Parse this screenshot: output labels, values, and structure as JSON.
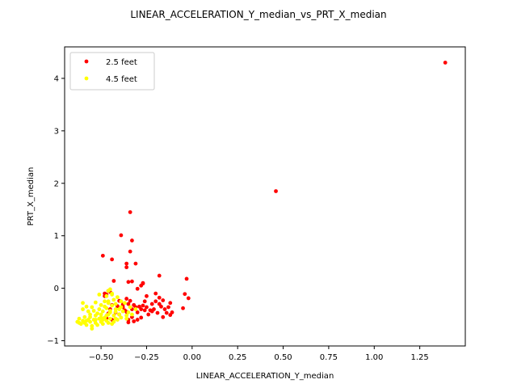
{
  "chart_data": {
    "type": "scatter",
    "title": "LINEAR_ACCELERATION_Y_median_vs_PRT_X_median",
    "xlabel": "LINEAR_ACCELERATION_Y_median",
    "ylabel": "PRT_X_median",
    "xlim": [
      -0.7,
      1.5
    ],
    "ylim": [
      -1.1,
      4.6
    ],
    "xticks": [
      -0.5,
      -0.25,
      0.0,
      0.25,
      0.5,
      0.75,
      1.0,
      1.25
    ],
    "xtick_labels": [
      "−0.50",
      "−0.25",
      "0.00",
      "0.25",
      "0.50",
      "0.75",
      "1.00",
      "1.25"
    ],
    "yticks": [
      -1,
      0,
      1,
      2,
      3,
      4
    ],
    "ytick_labels": [
      "−1",
      "0",
      "1",
      "2",
      "3",
      "4"
    ],
    "grid": false,
    "legend_position": "top-left",
    "series": [
      {
        "name": "2.5 feet",
        "color": "#ff0000",
        "points": [
          [
            1.39,
            4.3
          ],
          [
            0.46,
            1.85
          ],
          [
            -0.34,
            1.45
          ],
          [
            -0.39,
            1.01
          ],
          [
            -0.33,
            0.91
          ],
          [
            -0.49,
            0.62
          ],
          [
            -0.44,
            0.55
          ],
          [
            -0.34,
            0.7
          ],
          [
            -0.36,
            0.47
          ],
          [
            -0.31,
            0.47
          ],
          [
            -0.36,
            0.4
          ],
          [
            -0.03,
            0.18
          ],
          [
            -0.18,
            0.24
          ],
          [
            -0.33,
            0.13
          ],
          [
            -0.35,
            0.12
          ],
          [
            -0.43,
            0.14
          ],
          [
            -0.27,
            0.09
          ],
          [
            -0.28,
            0.05
          ],
          [
            -0.3,
            -0.01
          ],
          [
            -0.46,
            -0.05
          ],
          [
            -0.45,
            -0.07
          ],
          [
            -0.04,
            -0.11
          ],
          [
            -0.2,
            -0.1
          ],
          [
            -0.47,
            -0.12
          ],
          [
            -0.48,
            -0.15
          ],
          [
            -0.18,
            -0.18
          ],
          [
            -0.25,
            -0.15
          ],
          [
            -0.4,
            -0.24
          ],
          [
            -0.36,
            -0.2
          ],
          [
            -0.26,
            -0.25
          ],
          [
            -0.02,
            -0.19
          ],
          [
            -0.16,
            -0.23
          ],
          [
            -0.34,
            -0.24
          ],
          [
            -0.18,
            -0.3
          ],
          [
            -0.2,
            -0.25
          ],
          [
            -0.35,
            -0.3
          ],
          [
            -0.38,
            -0.31
          ],
          [
            -0.41,
            -0.34
          ],
          [
            -0.44,
            -0.32
          ],
          [
            -0.27,
            -0.33
          ],
          [
            -0.32,
            -0.32
          ],
          [
            -0.29,
            -0.35
          ],
          [
            -0.25,
            -0.36
          ],
          [
            -0.28,
            -0.4
          ],
          [
            -0.31,
            -0.36
          ],
          [
            -0.45,
            -0.4
          ],
          [
            -0.37,
            -0.42
          ],
          [
            -0.26,
            -0.42
          ],
          [
            -0.22,
            -0.44
          ],
          [
            -0.17,
            -0.35
          ],
          [
            -0.13,
            -0.36
          ],
          [
            -0.15,
            -0.4
          ],
          [
            -0.05,
            -0.38
          ],
          [
            -0.12,
            -0.28
          ],
          [
            -0.21,
            -0.4
          ],
          [
            -0.23,
            -0.42
          ],
          [
            -0.36,
            -0.45
          ],
          [
            -0.3,
            -0.46
          ],
          [
            -0.4,
            -0.5
          ],
          [
            -0.42,
            -0.46
          ],
          [
            -0.46,
            -0.48
          ],
          [
            -0.19,
            -0.47
          ],
          [
            -0.14,
            -0.47
          ],
          [
            -0.11,
            -0.46
          ],
          [
            -0.12,
            -0.51
          ],
          [
            -0.24,
            -0.5
          ],
          [
            -0.33,
            -0.55
          ],
          [
            -0.28,
            -0.56
          ],
          [
            -0.35,
            -0.6
          ],
          [
            -0.47,
            -0.57
          ],
          [
            -0.32,
            -0.63
          ],
          [
            -0.16,
            -0.55
          ],
          [
            -0.44,
            -0.6
          ],
          [
            -0.3,
            -0.6
          ],
          [
            -0.35,
            -0.65
          ],
          [
            -0.48,
            -0.1
          ],
          [
            -0.27,
            0.1
          ],
          [
            -0.22,
            -0.3
          ],
          [
            -0.38,
            -0.36
          ],
          [
            -0.33,
            -0.4
          ]
        ]
      },
      {
        "name": "4.5 feet",
        "color": "#ffff00",
        "points": [
          [
            -0.45,
            -0.02
          ],
          [
            -0.44,
            -0.1
          ],
          [
            -0.47,
            -0.15
          ],
          [
            -0.51,
            -0.12
          ],
          [
            -0.41,
            -0.17
          ],
          [
            -0.43,
            -0.22
          ],
          [
            -0.48,
            -0.25
          ],
          [
            -0.53,
            -0.27
          ],
          [
            -0.46,
            -0.28
          ],
          [
            -0.5,
            -0.32
          ],
          [
            -0.42,
            -0.3
          ],
          [
            -0.55,
            -0.36
          ],
          [
            -0.58,
            -0.35
          ],
          [
            -0.6,
            -0.28
          ],
          [
            -0.44,
            -0.33
          ],
          [
            -0.39,
            -0.36
          ],
          [
            -0.47,
            -0.38
          ],
          [
            -0.51,
            -0.4
          ],
          [
            -0.54,
            -0.43
          ],
          [
            -0.57,
            -0.44
          ],
          [
            -0.6,
            -0.4
          ],
          [
            -0.49,
            -0.44
          ],
          [
            -0.45,
            -0.43
          ],
          [
            -0.42,
            -0.45
          ],
          [
            -0.38,
            -0.44
          ],
          [
            -0.35,
            -0.46
          ],
          [
            -0.33,
            -0.5
          ],
          [
            -0.36,
            -0.52
          ],
          [
            -0.4,
            -0.5
          ],
          [
            -0.43,
            -0.52
          ],
          [
            -0.46,
            -0.5
          ],
          [
            -0.5,
            -0.5
          ],
          [
            -0.53,
            -0.52
          ],
          [
            -0.56,
            -0.55
          ],
          [
            -0.59,
            -0.55
          ],
          [
            -0.62,
            -0.58
          ],
          [
            -0.6,
            -0.62
          ],
          [
            -0.57,
            -0.6
          ],
          [
            -0.54,
            -0.6
          ],
          [
            -0.51,
            -0.58
          ],
          [
            -0.48,
            -0.56
          ],
          [
            -0.45,
            -0.58
          ],
          [
            -0.42,
            -0.58
          ],
          [
            -0.39,
            -0.56
          ],
          [
            -0.36,
            -0.58
          ],
          [
            -0.47,
            -0.62
          ],
          [
            -0.5,
            -0.64
          ],
          [
            -0.53,
            -0.66
          ],
          [
            -0.56,
            -0.64
          ],
          [
            -0.59,
            -0.66
          ],
          [
            -0.62,
            -0.66
          ],
          [
            -0.55,
            -0.72
          ],
          [
            -0.52,
            -0.7
          ],
          [
            -0.49,
            -0.68
          ],
          [
            -0.46,
            -0.66
          ],
          [
            -0.43,
            -0.64
          ],
          [
            -0.55,
            -0.77
          ],
          [
            -0.58,
            -0.7
          ],
          [
            -0.61,
            -0.68
          ],
          [
            -0.44,
            -0.68
          ],
          [
            -0.46,
            -0.25
          ],
          [
            -0.4,
            -0.4
          ],
          [
            -0.52,
            -0.48
          ],
          [
            -0.37,
            -0.28
          ],
          [
            -0.34,
            -0.36
          ],
          [
            -0.31,
            -0.4
          ],
          [
            -0.48,
            -0.35
          ],
          [
            -0.56,
            -0.5
          ],
          [
            -0.41,
            -0.6
          ],
          [
            -0.45,
            -0.46
          ],
          [
            -0.5,
            -0.56
          ],
          [
            -0.53,
            -0.6
          ],
          [
            -0.58,
            -0.62
          ],
          [
            -0.63,
            -0.64
          ],
          [
            -0.47,
            -0.52
          ],
          [
            -0.44,
            -0.12
          ],
          [
            -0.46,
            -0.05
          ],
          [
            -0.39,
            -0.25
          ],
          [
            -0.42,
            -0.4
          ],
          [
            -0.49,
            -0.6
          ]
        ]
      }
    ]
  }
}
